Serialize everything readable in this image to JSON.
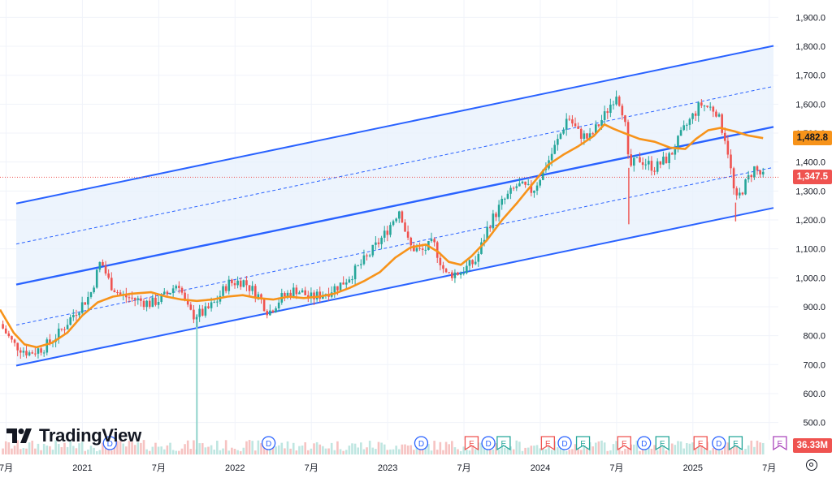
{
  "chart_data": {
    "type": "candlestick",
    "y_axis": {
      "ticks": [
        "500.0",
        "600.0",
        "700.0",
        "800.0",
        "900.0",
        "1,000.0",
        "1,100.0",
        "1,200.0",
        "1,300.0",
        "1,400.0",
        "1,500.0",
        "1,600.0",
        "1,700.0",
        "1,800.0",
        "1,900.0"
      ],
      "range": [
        440,
        1960
      ]
    },
    "x_axis": {
      "labels": [
        {
          "text": "7月",
          "t": 2020.5
        },
        {
          "text": "2021",
          "t": 2021.0
        },
        {
          "text": "7月",
          "t": 2021.5
        },
        {
          "text": "2022",
          "t": 2022.0
        },
        {
          "text": "7月",
          "t": 2022.5
        },
        {
          "text": "2023",
          "t": 2023.0
        },
        {
          "text": "7月",
          "t": 2023.5
        },
        {
          "text": "2024",
          "t": 2024.0
        },
        {
          "text": "7月",
          "t": 2024.5
        },
        {
          "text": "2025",
          "t": 2025.0
        },
        {
          "text": "7月",
          "t": 2025.5
        }
      ],
      "range": [
        2020.46,
        2025.56
      ]
    },
    "price_path": [
      [
        2020.46,
        840
      ],
      [
        2020.55,
        770
      ],
      [
        2020.65,
        740
      ],
      [
        2020.75,
        760
      ],
      [
        2020.85,
        810
      ],
      [
        2020.95,
        880
      ],
      [
        2021.05,
        940
      ],
      [
        2021.12,
        1060
      ],
      [
        2021.18,
        980
      ],
      [
        2021.25,
        940
      ],
      [
        2021.35,
        925
      ],
      [
        2021.45,
        910
      ],
      [
        2021.55,
        940
      ],
      [
        2021.63,
        985
      ],
      [
        2021.68,
        900
      ],
      [
        2021.72,
        870
      ],
      [
        2021.8,
        880
      ],
      [
        2021.88,
        920
      ],
      [
        2021.95,
        980
      ],
      [
        2022.05,
        990
      ],
      [
        2022.15,
        940
      ],
      [
        2022.22,
        880
      ],
      [
        2022.3,
        930
      ],
      [
        2022.4,
        960
      ],
      [
        2022.5,
        930
      ],
      [
        2022.6,
        950
      ],
      [
        2022.7,
        980
      ],
      [
        2022.78,
        1020
      ],
      [
        2022.88,
        1080
      ],
      [
        2022.98,
        1150
      ],
      [
        2023.08,
        1240
      ],
      [
        2023.14,
        1110
      ],
      [
        2023.22,
        1090
      ],
      [
        2023.3,
        1120
      ],
      [
        2023.38,
        1010
      ],
      [
        2023.48,
        1020
      ],
      [
        2023.58,
        1060
      ],
      [
        2023.66,
        1180
      ],
      [
        2023.75,
        1260
      ],
      [
        2023.85,
        1320
      ],
      [
        2023.95,
        1300
      ],
      [
        2024.05,
        1400
      ],
      [
        2024.12,
        1480
      ],
      [
        2024.18,
        1560
      ],
      [
        2024.25,
        1500
      ],
      [
        2024.32,
        1480
      ],
      [
        2024.42,
        1560
      ],
      [
        2024.5,
        1640
      ],
      [
        2024.55,
        1560
      ],
      [
        2024.58,
        1380
      ],
      [
        2024.65,
        1410
      ],
      [
        2024.75,
        1380
      ],
      [
        2024.85,
        1420
      ],
      [
        2024.95,
        1520
      ],
      [
        2025.05,
        1600
      ],
      [
        2025.15,
        1580
      ],
      [
        2025.22,
        1470
      ],
      [
        2025.28,
        1260
      ],
      [
        2025.32,
        1300
      ],
      [
        2025.4,
        1380
      ],
      [
        2025.46,
        1347.5
      ]
    ],
    "moving_average": [
      [
        2020.46,
        890
      ],
      [
        2020.55,
        810
      ],
      [
        2020.62,
        770
      ],
      [
        2020.7,
        760
      ],
      [
        2020.8,
        775
      ],
      [
        2020.9,
        810
      ],
      [
        2021.0,
        870
      ],
      [
        2021.1,
        915
      ],
      [
        2021.2,
        935
      ],
      [
        2021.32,
        945
      ],
      [
        2021.45,
        950
      ],
      [
        2021.55,
        935
      ],
      [
        2021.65,
        925
      ],
      [
        2021.75,
        920
      ],
      [
        2021.85,
        925
      ],
      [
        2021.95,
        935
      ],
      [
        2022.05,
        940
      ],
      [
        2022.15,
        930
      ],
      [
        2022.25,
        925
      ],
      [
        2022.35,
        935
      ],
      [
        2022.45,
        930
      ],
      [
        2022.55,
        935
      ],
      [
        2022.65,
        945
      ],
      [
        2022.75,
        965
      ],
      [
        2022.85,
        990
      ],
      [
        2022.95,
        1020
      ],
      [
        2023.05,
        1070
      ],
      [
        2023.15,
        1105
      ],
      [
        2023.25,
        1115
      ],
      [
        2023.33,
        1090
      ],
      [
        2023.4,
        1055
      ],
      [
        2023.48,
        1045
      ],
      [
        2023.55,
        1075
      ],
      [
        2023.65,
        1130
      ],
      [
        2023.75,
        1200
      ],
      [
        2023.85,
        1260
      ],
      [
        2023.95,
        1325
      ],
      [
        2024.05,
        1390
      ],
      [
        2024.15,
        1425
      ],
      [
        2024.25,
        1455
      ],
      [
        2024.35,
        1490
      ],
      [
        2024.42,
        1530
      ],
      [
        2024.48,
        1515
      ],
      [
        2024.55,
        1500
      ],
      [
        2024.65,
        1480
      ],
      [
        2024.75,
        1470
      ],
      [
        2024.85,
        1450
      ],
      [
        2024.95,
        1445
      ],
      [
        2025.02,
        1480
      ],
      [
        2025.1,
        1510
      ],
      [
        2025.18,
        1518
      ],
      [
        2025.28,
        1505
      ],
      [
        2025.36,
        1492
      ],
      [
        2025.46,
        1482.8
      ]
    ],
    "channel": {
      "t_start": 2020.46,
      "t_end": 2025.56,
      "upper": [
        1245,
        1805
      ],
      "upper_quarter": [
        1105,
        1665
      ],
      "middle": [
        965,
        1525
      ],
      "lower_quarter": [
        825,
        1385
      ],
      "lower": [
        685,
        1245
      ]
    },
    "events": [
      {
        "t": 2021.18,
        "type": "D"
      },
      {
        "t": 2022.22,
        "type": "D"
      },
      {
        "t": 2023.22,
        "type": "D"
      },
      {
        "t": 2023.55,
        "type": "E"
      },
      {
        "t": 2023.66,
        "type": "D"
      },
      {
        "t": 2023.76,
        "type": "E"
      },
      {
        "t": 2024.05,
        "type": "E"
      },
      {
        "t": 2024.16,
        "type": "D"
      },
      {
        "t": 2024.28,
        "type": "E"
      },
      {
        "t": 2024.55,
        "type": "E"
      },
      {
        "t": 2024.68,
        "type": "D"
      },
      {
        "t": 2024.8,
        "type": "E"
      },
      {
        "t": 2025.05,
        "type": "E"
      },
      {
        "t": 2025.17,
        "type": "D"
      },
      {
        "t": 2025.28,
        "type": "E"
      },
      {
        "t": 2025.57,
        "type": "E"
      }
    ],
    "volume_label": "36.33M",
    "ma_value_label": "1,482.8",
    "last_price_label": "1,347.5",
    "last_price": 1347.5,
    "ma_value": 1482.8
  },
  "colors": {
    "up": "#26a69a",
    "down": "#ef5350",
    "channel": "#2962ff",
    "channel_fill": "#e9f1fd",
    "ma": "#f7931a",
    "volume_tag": "#ef5350",
    "event_d": "#2962ff",
    "event_e_red": "#ef5350",
    "event_e_green": "#26a69a",
    "event_e_purple": "#ab47bc"
  },
  "brand": {
    "name": "TradingView"
  }
}
